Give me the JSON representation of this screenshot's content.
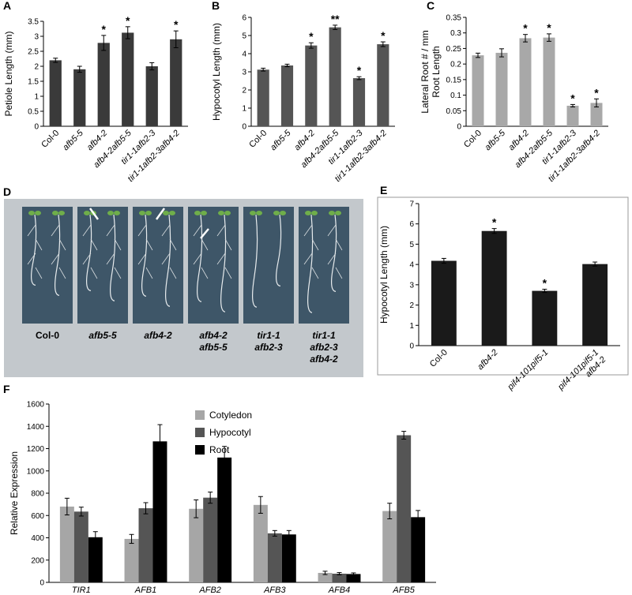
{
  "chart_data": [
    {
      "type": "bar",
      "panel": "A",
      "ylabel": [
        "Petiole Length (mm)"
      ],
      "categories": [
        [
          "Col-0"
        ],
        [
          "afb5-5"
        ],
        [
          "afb4-2"
        ],
        [
          "afb4-2afb5-5"
        ],
        [
          "tir1-1afb2-3"
        ],
        [
          "tir1-1afb2-3afb4-2"
        ]
      ],
      "values": [
        2.2,
        1.9,
        2.78,
        3.12,
        2.0,
        2.9
      ],
      "errors": [
        0.07,
        0.1,
        0.25,
        0.2,
        0.12,
        0.28
      ],
      "significance": [
        null,
        null,
        "*",
        "*",
        null,
        "*"
      ],
      "color": "#3a3a3a",
      "ylim": [
        0,
        3.5
      ],
      "yticks": [
        0,
        0.5,
        1,
        1.5,
        2,
        2.5,
        3,
        3.5
      ],
      "grid": false,
      "frame": false
    },
    {
      "type": "bar",
      "panel": "B",
      "ylabel": [
        "Hypocotyl Length (mm)"
      ],
      "categories": [
        [
          "Col-0"
        ],
        [
          "afb5-5"
        ],
        [
          "afb4-2"
        ],
        [
          "afb4-2afb5-5"
        ],
        [
          "tir1-1afb2-3"
        ],
        [
          "tir1-1afb2-3afb4-2"
        ]
      ],
      "values": [
        3.12,
        3.35,
        4.45,
        5.45,
        2.65,
        4.52
      ],
      "errors": [
        0.08,
        0.07,
        0.15,
        0.12,
        0.08,
        0.13
      ],
      "significance": [
        null,
        null,
        "*",
        "**",
        "*",
        "*"
      ],
      "color": "#555555",
      "ylim": [
        0,
        6
      ],
      "yticks": [
        0,
        1,
        2,
        3,
        4,
        5,
        6
      ],
      "grid": false,
      "frame": false
    },
    {
      "type": "bar",
      "panel": "C",
      "ylabel": [
        "Lateral Root # / mm",
        "Root Length"
      ],
      "categories": [
        [
          "Col-0"
        ],
        [
          "afb5-5"
        ],
        [
          "afb4-2"
        ],
        [
          "afb4-2afb5-5"
        ],
        [
          "tir1-1afb2-3"
        ],
        [
          "tir1-1afb2-3afb4-2"
        ]
      ],
      "values": [
        0.228,
        0.236,
        0.283,
        0.285,
        0.066,
        0.075
      ],
      "errors": [
        0.007,
        0.013,
        0.012,
        0.012,
        0.004,
        0.013
      ],
      "significance": [
        null,
        null,
        "*",
        "*",
        "*",
        "*"
      ],
      "color": "#a8a8a8",
      "ylim": [
        0,
        0.35
      ],
      "yticks": [
        0,
        0.05,
        0.1,
        0.15,
        0.2,
        0.25,
        0.3,
        0.35
      ],
      "grid": false,
      "frame": false
    },
    {
      "type": "bar",
      "panel": "E",
      "ylabel": [
        "Hypocotyl Length (mm)"
      ],
      "categories": [
        [
          "Col-0"
        ],
        [
          "afb4-2"
        ],
        [
          "pif4-101pif5-1"
        ],
        [
          "pif4-101pif5-1",
          "afb4-2"
        ]
      ],
      "values": [
        4.18,
        5.65,
        2.7,
        4.02
      ],
      "errors": [
        0.12,
        0.12,
        0.08,
        0.1
      ],
      "significance": [
        null,
        "*",
        "*",
        null
      ],
      "color": "#1a1a1a",
      "ylim": [
        0,
        7
      ],
      "yticks": [
        0,
        1,
        2,
        3,
        4,
        5,
        6,
        7
      ],
      "grid": false,
      "frame": true
    },
    {
      "type": "grouped_bar",
      "panel": "F",
      "ylabel": [
        "Relative Expression"
      ],
      "categories": [
        [
          "TIR1"
        ],
        [
          "AFB1"
        ],
        [
          "AFB2"
        ],
        [
          "AFB3"
        ],
        [
          "AFB4"
        ],
        [
          "AFB5"
        ]
      ],
      "series": [
        {
          "name": "Cotyledon",
          "color": "#a6a6a6",
          "values": [
            680,
            390,
            660,
            695,
            85,
            640
          ],
          "errors": [
            75,
            40,
            80,
            75,
            15,
            70
          ]
        },
        {
          "name": "Hypocotyl",
          "color": "#555555",
          "values": [
            635,
            665,
            760,
            440,
            78,
            1320
          ],
          "errors": [
            40,
            50,
            50,
            25,
            10,
            35
          ]
        },
        {
          "name": "Root",
          "color": "#000000",
          "values": [
            405,
            1265,
            1120,
            430,
            75,
            585
          ],
          "errors": [
            50,
            150,
            100,
            35,
            10,
            60
          ]
        }
      ],
      "ylim": [
        0,
        1600
      ],
      "yticks": [
        0,
        200,
        400,
        600,
        800,
        1000,
        1200,
        1400,
        1600
      ],
      "grid": false,
      "frame": false
    }
  ],
  "image_panel": {
    "panel": "D",
    "labels": [
      [
        "Col-0"
      ],
      [
        "afb5-5"
      ],
      [
        "afb4-2"
      ],
      [
        "afb4-2",
        "afb5-5"
      ],
      [
        "tir1-1",
        "afb2-3"
      ],
      [
        "tir1-1",
        "afb2-3",
        "afb4-2"
      ]
    ]
  }
}
